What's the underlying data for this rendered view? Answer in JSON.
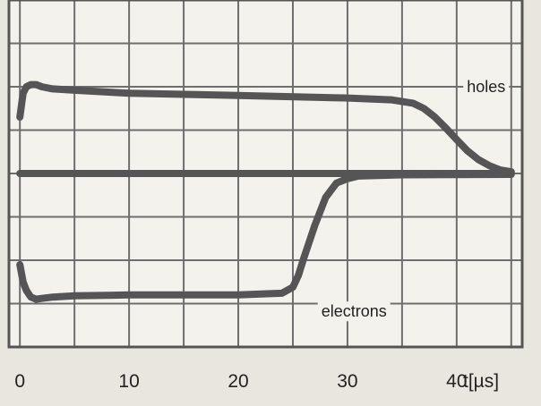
{
  "chart_data": {
    "type": "line",
    "title": "",
    "xlabel": "t[µs]",
    "ylabel": "",
    "xlim": [
      -1,
      46
    ],
    "ylim": [
      -4,
      4
    ],
    "grid": true,
    "x_ticks": [
      {
        "value": 0,
        "label": "0"
      },
      {
        "value": 10,
        "label": "10"
      },
      {
        "value": 20,
        "label": "20"
      },
      {
        "value": 30,
        "label": "30"
      },
      {
        "value": 40,
        "label": "40"
      }
    ],
    "series": [
      {
        "name": "holes",
        "color": "#555555",
        "x": [
          0,
          0.3,
          0.6,
          1,
          1.5,
          2,
          3,
          5,
          10,
          20,
          30,
          34,
          36,
          37,
          38,
          39,
          40,
          41,
          42,
          43,
          44,
          45
        ],
        "y": [
          1.3,
          1.85,
          2.0,
          2.05,
          2.05,
          2.0,
          1.95,
          1.92,
          1.85,
          1.8,
          1.74,
          1.7,
          1.62,
          1.5,
          1.3,
          1.05,
          0.78,
          0.52,
          0.32,
          0.18,
          0.08,
          0.04
        ]
      },
      {
        "name": "",
        "color": "#555555",
        "x": [
          0,
          45
        ],
        "y": [
          0,
          0
        ]
      },
      {
        "name": "electrons",
        "color": "#555555",
        "x": [
          0,
          0.3,
          0.6,
          1,
          1.5,
          2,
          3,
          5,
          10,
          20,
          24,
          25,
          25.5,
          26,
          27,
          28,
          29,
          30,
          31,
          35,
          45
        ],
        "y": [
          -2.1,
          -2.5,
          -2.7,
          -2.85,
          -2.9,
          -2.88,
          -2.85,
          -2.82,
          -2.8,
          -2.8,
          -2.76,
          -2.62,
          -2.35,
          -1.95,
          -1.2,
          -0.55,
          -0.22,
          -0.12,
          -0.06,
          -0.03,
          -0.02
        ]
      }
    ]
  }
}
